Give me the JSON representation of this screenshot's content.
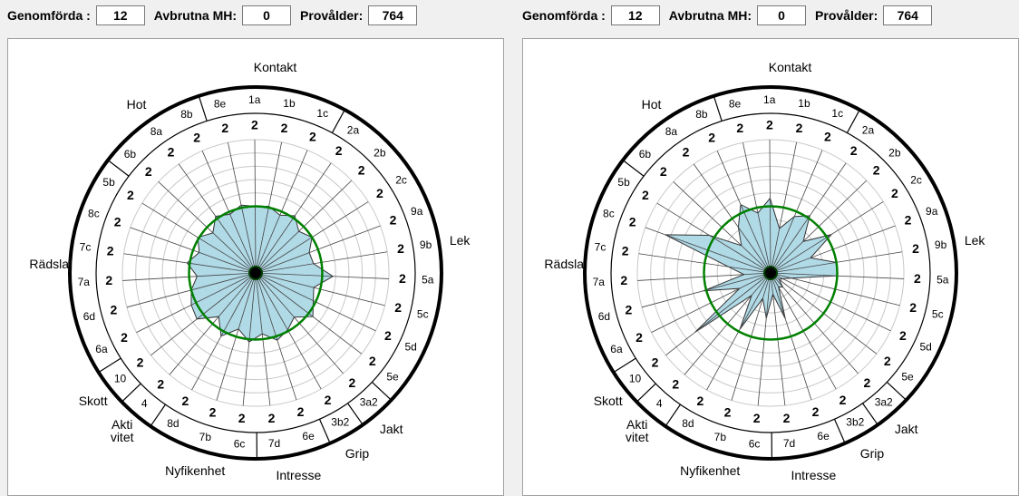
{
  "panels": [
    {
      "header": {
        "fields": [
          {
            "label": "Genomförda :",
            "value": 12
          },
          {
            "label": "Avbrutna MH:",
            "value": 0
          },
          {
            "label": "Provålder:",
            "value": 764
          }
        ]
      },
      "chart_data": {
        "type": "radar",
        "groups": [
          {
            "label": "Kontakt",
            "items": [
              "8e",
              "1a",
              "1b",
              "1c"
            ]
          },
          {
            "label": "Lek",
            "items": [
              "2a",
              "2b",
              "2c",
              "9a",
              "9b",
              "5a",
              "5c",
              "5d",
              "5e"
            ]
          },
          {
            "label": "Jakt",
            "items": [
              "3a2"
            ]
          },
          {
            "label": "Grip",
            "items": [
              "3b2"
            ]
          },
          {
            "label": "Intresse",
            "items": [
              "6e",
              "7d"
            ]
          },
          {
            "label": "Nyfikenhet",
            "items": [
              "6c",
              "7b",
              "8d"
            ]
          },
          {
            "label": "Akti vitet",
            "items": [
              "4"
            ]
          },
          {
            "label": "Skott",
            "items": [
              "10"
            ]
          },
          {
            "label": "Rädsla",
            "items": [
              "6a",
              "6d",
              "7a",
              "7c",
              "8c",
              "5b"
            ]
          },
          {
            "label": "Hot",
            "items": [
              "6b",
              "8a",
              "8b"
            ]
          }
        ],
        "item_values": [
          2,
          2,
          2,
          2,
          2,
          2,
          2,
          2,
          2,
          2,
          2,
          2,
          2,
          2,
          2,
          2,
          2,
          2,
          2,
          2,
          2,
          2,
          2,
          2,
          2,
          2,
          2,
          2,
          2,
          2,
          2
        ],
        "series": [
          {
            "color": "#add8e6",
            "values": [
              5.2,
              5.0,
              5.1,
              4.7,
              5.2,
              4.5,
              5.0,
              4.3,
              4.4,
              5.8,
              4.5,
              4.8,
              5.4,
              4.4,
              4.9,
              5.3,
              4.6,
              5.2,
              4.4,
              5.4,
              4.3,
              5.6,
              5.4,
              5.0,
              4.4,
              5.2,
              4.5,
              5.1,
              4.4,
              5.2,
              4.8
            ]
          }
        ],
        "rlim": [
          0,
          10
        ],
        "rticks": [
          1,
          2,
          3,
          4,
          5,
          6,
          7,
          8,
          9,
          10
        ],
        "reference": 5,
        "reference_color": "#008000"
      }
    },
    {
      "header": {
        "fields": [
          {
            "label": "Genomförda :",
            "value": 12
          },
          {
            "label": "Avbrutna MH:",
            "value": 0
          },
          {
            "label": "Provålder:",
            "value": 764
          }
        ]
      },
      "chart_data": {
        "type": "radar",
        "groups": [
          {
            "label": "Kontakt",
            "items": [
              "8e",
              "1a",
              "1b",
              "1c"
            ]
          },
          {
            "label": "Lek",
            "items": [
              "2a",
              "2b",
              "2c",
              "9a",
              "9b",
              "5a",
              "5c",
              "5d",
              "5e"
            ]
          },
          {
            "label": "Jakt",
            "items": [
              "3a2"
            ]
          },
          {
            "label": "Grip",
            "items": [
              "3b2"
            ]
          },
          {
            "label": "Intresse",
            "items": [
              "6e",
              "7d"
            ]
          },
          {
            "label": "Nyfikenhet",
            "items": [
              "6c",
              "7b",
              "8d"
            ]
          },
          {
            "label": "Akti vitet",
            "items": [
              "4"
            ]
          },
          {
            "label": "Skott",
            "items": [
              "10"
            ]
          },
          {
            "label": "Rädsla",
            "items": [
              "6a",
              "6d",
              "7a",
              "7c",
              "8c",
              "5b"
            ]
          },
          {
            "label": "Hot",
            "items": [
              "6b",
              "8a",
              "8b"
            ]
          }
        ],
        "item_values": [
          2,
          2,
          2,
          2,
          2,
          2,
          2,
          2,
          2,
          2,
          2,
          2,
          2,
          2,
          2,
          2,
          2,
          2,
          2,
          2,
          2,
          2,
          2,
          2,
          2,
          2,
          2,
          2,
          2,
          2,
          2
        ],
        "series": [
          {
            "color": "#add8e6",
            "values": [
              4.6,
              5.6,
              3.4,
              4.6,
              5.2,
              3.4,
              5.4,
              3.2,
              5.0,
              5.0,
              1.6,
              1.0,
              0.8,
              1.4,
              1.2,
              3.6,
              1.6,
              3.4,
              2.0,
              4.8,
              2.2,
              7.2,
              2.6,
              5.2,
              2.0,
              3.2,
              8.4,
              5.4,
              3.0,
              4.2,
              5.6
            ]
          }
        ],
        "rlim": [
          0,
          10
        ],
        "rticks": [
          1,
          2,
          3,
          4,
          5,
          6,
          7,
          8,
          9,
          10
        ],
        "reference": 5,
        "reference_color": "#008000"
      }
    }
  ]
}
